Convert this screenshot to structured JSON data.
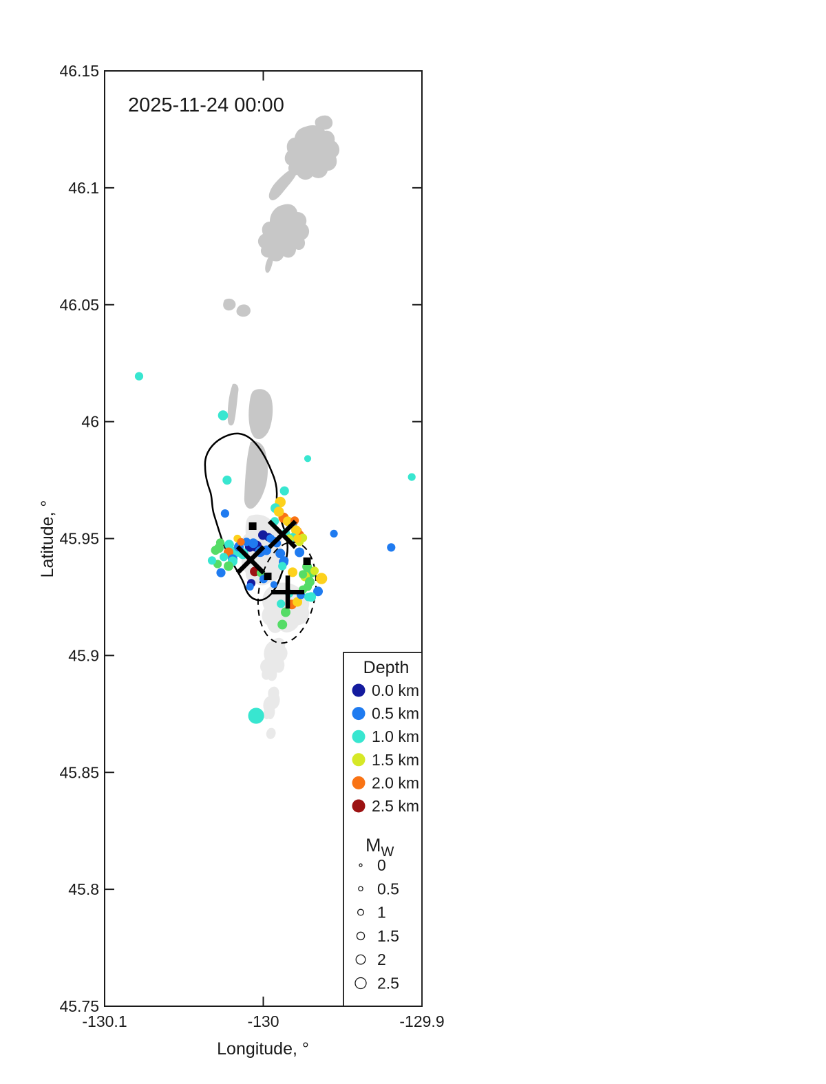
{
  "title": "2025-11-24 00:00",
  "axes": {
    "xlabel": "Longitude, °",
    "ylabel": "Latitude, °",
    "xtick_labels": [
      "-130.1",
      "-130",
      "-129.9"
    ],
    "xticks": [
      -130.1,
      -130.0,
      -129.9
    ],
    "ytick_labels": [
      "46.15",
      "46.1",
      "46.05",
      "46",
      "45.95",
      "45.9",
      "45.85",
      "45.8",
      "45.75"
    ],
    "yticks": [
      46.15,
      46.1,
      46.05,
      46.0,
      45.95,
      45.9,
      45.85,
      45.8,
      45.75
    ]
  },
  "legend": {
    "depth_title": "Depth",
    "depth_entries": [
      {
        "label": "0.0 km",
        "color": "#141b9e"
      },
      {
        "label": "0.5 km",
        "color": "#1f7bf0"
      },
      {
        "label": "1.0 km",
        "color": "#38e6d0"
      },
      {
        "label": "1.5 km",
        "color": "#d6e826"
      },
      {
        "label": "2.0 km",
        "color": "#f97314"
      },
      {
        "label": "2.5 km",
        "color": "#9c1212"
      }
    ],
    "mag_title": "M",
    "mag_subscript": "W",
    "mag_entries": [
      {
        "label": "0",
        "mag": 0
      },
      {
        "label": "0.5",
        "mag": 0.5
      },
      {
        "label": "1",
        "mag": 1
      },
      {
        "label": "1.5",
        "mag": 1.5
      },
      {
        "label": "2",
        "mag": 2
      },
      {
        "label": "2.5",
        "mag": 2.5
      }
    ]
  },
  "chart_data": {
    "type": "scatter",
    "title": "2025-11-24 00:00",
    "xlabel": "Longitude, °",
    "ylabel": "Latitude, °",
    "xlim": [
      -130.1,
      -129.9
    ],
    "ylim": [
      45.75,
      46.15
    ],
    "grid": false,
    "legend_position": "bottom-right-inside",
    "color_encodes": "depth_km",
    "size_encodes": "magnitude_Mw",
    "depth_colormap": [
      {
        "depth": 0.0,
        "color": "#141b9e"
      },
      {
        "depth": 0.5,
        "color": "#1f7bf0"
      },
      {
        "depth": 1.0,
        "color": "#38e6d0"
      },
      {
        "depth": 1.25,
        "color": "#55dc66"
      },
      {
        "depth": 1.5,
        "color": "#d6e826"
      },
      {
        "depth": 1.75,
        "color": "#fdd11c"
      },
      {
        "depth": 2.0,
        "color": "#f97314"
      },
      {
        "depth": 2.5,
        "color": "#9c1212"
      }
    ],
    "earthquakes": [
      {
        "lon": -130.0783,
        "lat": 46.0194,
        "depth_km": 1.0,
        "mag": 1.7
      },
      {
        "lon": -130.0254,
        "lat": 46.0027,
        "depth_km": 1.0,
        "mag": 2.2
      },
      {
        "lon": -130.0228,
        "lat": 45.975,
        "depth_km": 1.0,
        "mag": 1.9
      },
      {
        "lon": -129.972,
        "lat": 45.9842,
        "depth_km": 1.0,
        "mag": 1.3
      },
      {
        "lon": -129.9064,
        "lat": 45.9763,
        "depth_km": 1.0,
        "mag": 1.5
      },
      {
        "lon": -130.0241,
        "lat": 45.9607,
        "depth_km": 0.5,
        "mag": 1.7
      },
      {
        "lon": -129.9867,
        "lat": 45.9704,
        "depth_km": 1.0,
        "mag": 1.9
      },
      {
        "lon": -129.9555,
        "lat": 45.9521,
        "depth_km": 0.5,
        "mag": 1.5
      },
      {
        "lon": -129.9194,
        "lat": 45.9462,
        "depth_km": 0.5,
        "mag": 1.7
      },
      {
        "lon": -130.0267,
        "lat": 45.9354,
        "depth_km": 0.5,
        "mag": 1.9
      },
      {
        "lon": -130.0045,
        "lat": 45.8742,
        "depth_km": 1.0,
        "mag": 4.0
      },
      {
        "lon": -129.9893,
        "lat": 45.9656,
        "depth_km": 1.75,
        "mag": 2.4
      },
      {
        "lon": -129.9924,
        "lat": 45.963,
        "depth_km": 1.0,
        "mag": 2.1
      },
      {
        "lon": -129.9872,
        "lat": 45.9589,
        "depth_km": 2.0,
        "mag": 2.3
      },
      {
        "lon": -129.9928,
        "lat": 45.9574,
        "depth_km": 1.0,
        "mag": 1.7
      },
      {
        "lon": -129.9902,
        "lat": 45.9615,
        "depth_km": 1.75,
        "mag": 2.2
      },
      {
        "lon": -129.9815,
        "lat": 45.9568,
        "depth_km": 0.5,
        "mag": 2.1
      },
      {
        "lon": -129.9785,
        "lat": 45.9533,
        "depth_km": 2.0,
        "mag": 1.7
      },
      {
        "lon": -129.9776,
        "lat": 45.9512,
        "depth_km": 2.0,
        "mag": 2.6
      },
      {
        "lon": -129.9846,
        "lat": 45.9574,
        "depth_km": 1.75,
        "mag": 2.1
      },
      {
        "lon": -129.9802,
        "lat": 45.9577,
        "depth_km": 2.0,
        "mag": 1.7
      },
      {
        "lon": -129.9794,
        "lat": 45.9536,
        "depth_km": 1.75,
        "mag": 2.1
      },
      {
        "lon": -129.9859,
        "lat": 45.9524,
        "depth_km": 1.0,
        "mag": 1.7
      },
      {
        "lon": -129.9815,
        "lat": 45.9506,
        "depth_km": 1.0,
        "mag": 1.7
      },
      {
        "lon": -129.975,
        "lat": 45.9503,
        "depth_km": 1.5,
        "mag": 1.7
      },
      {
        "lon": -129.9837,
        "lat": 45.95,
        "depth_km": 1.5,
        "mag": 1.7
      },
      {
        "lon": -129.9772,
        "lat": 45.9486,
        "depth_km": 1.5,
        "mag": 1.7
      },
      {
        "lon": -130.0002,
        "lat": 45.9515,
        "depth_km": 0.0,
        "mag": 2.1
      },
      {
        "lon": -129.9967,
        "lat": 45.9506,
        "depth_km": 0.0,
        "mag": 1.7
      },
      {
        "lon": -130.0045,
        "lat": 45.9468,
        "depth_km": 0.0,
        "mag": 2.6
      },
      {
        "lon": -130.0084,
        "lat": 45.9465,
        "depth_km": 0.0,
        "mag": 2.2
      },
      {
        "lon": -130.0063,
        "lat": 45.948,
        "depth_km": 0.5,
        "mag": 2.1
      },
      {
        "lon": -129.9954,
        "lat": 45.95,
        "depth_km": 0.5,
        "mag": 1.7
      },
      {
        "lon": -129.9924,
        "lat": 45.9486,
        "depth_km": 0.5,
        "mag": 2.1
      },
      {
        "lon": -130.0019,
        "lat": 45.9444,
        "depth_km": 0.5,
        "mag": 2.4
      },
      {
        "lon": -129.998,
        "lat": 45.945,
        "depth_km": 0.5,
        "mag": 2.1
      },
      {
        "lon": -129.9893,
        "lat": 45.9436,
        "depth_km": 0.5,
        "mag": 2.1
      },
      {
        "lon": -129.9872,
        "lat": 45.94,
        "depth_km": 0.5,
        "mag": 2.1
      },
      {
        "lon": -130.0171,
        "lat": 45.9444,
        "depth_km": 1.0,
        "mag": 2.4
      },
      {
        "lon": -130.0128,
        "lat": 45.9435,
        "depth_km": 1.0,
        "mag": 2.4
      },
      {
        "lon": -130.0154,
        "lat": 45.9465,
        "depth_km": 0.5,
        "mag": 2.1
      },
      {
        "lon": -130.0106,
        "lat": 45.9486,
        "depth_km": 0.5,
        "mag": 1.7
      },
      {
        "lon": -130.0215,
        "lat": 45.9474,
        "depth_km": 1.0,
        "mag": 2.1
      },
      {
        "lon": -130.0219,
        "lat": 45.9441,
        "depth_km": 2.0,
        "mag": 2.1
      },
      {
        "lon": -130.028,
        "lat": 45.9459,
        "depth_km": 1.25,
        "mag": 2.1
      },
      {
        "lon": -130.0271,
        "lat": 45.9483,
        "depth_km": 1.25,
        "mag": 1.7
      },
      {
        "lon": -130.0301,
        "lat": 45.945,
        "depth_km": 1.25,
        "mag": 1.9
      },
      {
        "lon": -130.0193,
        "lat": 45.9412,
        "depth_km": 0.5,
        "mag": 2.1
      },
      {
        "lon": -130.0163,
        "lat": 45.95,
        "depth_km": 1.75,
        "mag": 1.5
      },
      {
        "lon": -130.0141,
        "lat": 45.9486,
        "depth_km": 2.0,
        "mag": 1.5
      },
      {
        "lon": -130.0193,
        "lat": 45.9403,
        "depth_km": 1.0,
        "mag": 2.1
      },
      {
        "lon": -130.0219,
        "lat": 45.9382,
        "depth_km": 1.25,
        "mag": 2.1
      },
      {
        "lon": -130.0288,
        "lat": 45.9391,
        "depth_km": 1.25,
        "mag": 1.7
      },
      {
        "lon": -130.0323,
        "lat": 45.9406,
        "depth_km": 1.0,
        "mag": 1.7
      },
      {
        "lon": -130.0249,
        "lat": 45.9421,
        "depth_km": 1.0,
        "mag": 1.7
      },
      {
        "lon": -130.0054,
        "lat": 45.9359,
        "depth_km": 2.5,
        "mag": 2.1
      },
      {
        "lon": -130.0015,
        "lat": 45.9353,
        "depth_km": 1.25,
        "mag": 1.7
      },
      {
        "lon": -129.9998,
        "lat": 45.9327,
        "depth_km": 0.5,
        "mag": 1.7
      },
      {
        "lon": -130.0076,
        "lat": 45.9309,
        "depth_km": 0.0,
        "mag": 1.7
      },
      {
        "lon": -130.0084,
        "lat": 45.9294,
        "depth_km": 0.5,
        "mag": 1.5
      },
      {
        "lon": -129.9933,
        "lat": 45.9303,
        "depth_km": 0.5,
        "mag": 1.3
      },
      {
        "lon": -129.9915,
        "lat": 45.948,
        "depth_km": 0.5,
        "mag": 1.7
      },
      {
        "lon": -129.9724,
        "lat": 45.938,
        "depth_km": 1.25,
        "mag": 2.1
      },
      {
        "lon": -129.9698,
        "lat": 45.9356,
        "depth_km": 1.25,
        "mag": 2.4
      },
      {
        "lon": -129.9737,
        "lat": 45.9338,
        "depth_km": 1.5,
        "mag": 2.1
      },
      {
        "lon": -129.9707,
        "lat": 45.9315,
        "depth_km": 1.25,
        "mag": 2.1
      },
      {
        "lon": -129.9677,
        "lat": 45.9362,
        "depth_km": 1.5,
        "mag": 1.7
      },
      {
        "lon": -129.9633,
        "lat": 45.9329,
        "depth_km": 1.75,
        "mag": 2.6
      },
      {
        "lon": -129.9655,
        "lat": 45.9274,
        "depth_km": 0.5,
        "mag": 2.1
      },
      {
        "lon": -129.9698,
        "lat": 45.925,
        "depth_km": 1.0,
        "mag": 2.1
      },
      {
        "lon": -129.972,
        "lat": 45.9294,
        "depth_km": 1.25,
        "mag": 1.7
      },
      {
        "lon": -129.9889,
        "lat": 45.9221,
        "depth_km": 1.0,
        "mag": 1.7
      },
      {
        "lon": -129.9859,
        "lat": 45.9185,
        "depth_km": 1.25,
        "mag": 2.1
      },
      {
        "lon": -129.982,
        "lat": 45.9218,
        "depth_km": 2.0,
        "mag": 2.1
      },
      {
        "lon": -129.9785,
        "lat": 45.9229,
        "depth_km": 1.75,
        "mag": 2.1
      },
      {
        "lon": -129.9763,
        "lat": 45.9259,
        "depth_km": 0.5,
        "mag": 1.7
      },
      {
        "lon": -129.9716,
        "lat": 45.925,
        "depth_km": 1.0,
        "mag": 1.7
      },
      {
        "lon": -129.975,
        "lat": 45.9282,
        "depth_km": 1.25,
        "mag": 1.7
      },
      {
        "lon": -129.988,
        "lat": 45.9132,
        "depth_km": 1.25,
        "mag": 2.1
      },
      {
        "lon": -129.9815,
        "lat": 45.9356,
        "depth_km": 1.75,
        "mag": 2.1
      },
      {
        "lon": -129.975,
        "lat": 45.9347,
        "depth_km": 1.25,
        "mag": 1.7
      },
      {
        "lon": -129.9867,
        "lat": 45.9406,
        "depth_km": 0.5,
        "mag": 1.7
      },
      {
        "lon": -129.988,
        "lat": 45.9382,
        "depth_km": 1.0,
        "mag": 1.7
      },
      {
        "lon": -129.9772,
        "lat": 45.9441,
        "depth_km": 0.5,
        "mag": 2.1
      },
      {
        "lon": -129.9785,
        "lat": 45.95,
        "depth_km": 1.75,
        "mag": 1.7
      },
      {
        "lon": -129.9837,
        "lat": 45.9265,
        "depth_km": 1.0,
        "mag": 1.7
      }
    ],
    "station_squares": [
      {
        "lon": -130.0067,
        "lat": 45.9553
      },
      {
        "lon": -129.9724,
        "lat": 45.9403
      },
      {
        "lon": -129.9972,
        "lat": 45.9338
      }
    ],
    "x_markers": [
      {
        "lon": -129.988,
        "lat": 45.9518
      },
      {
        "lon": -130.008,
        "lat": 45.9409
      }
    ],
    "plus_markers": [
      {
        "lon": -129.9846,
        "lat": 45.9271
      }
    ]
  }
}
